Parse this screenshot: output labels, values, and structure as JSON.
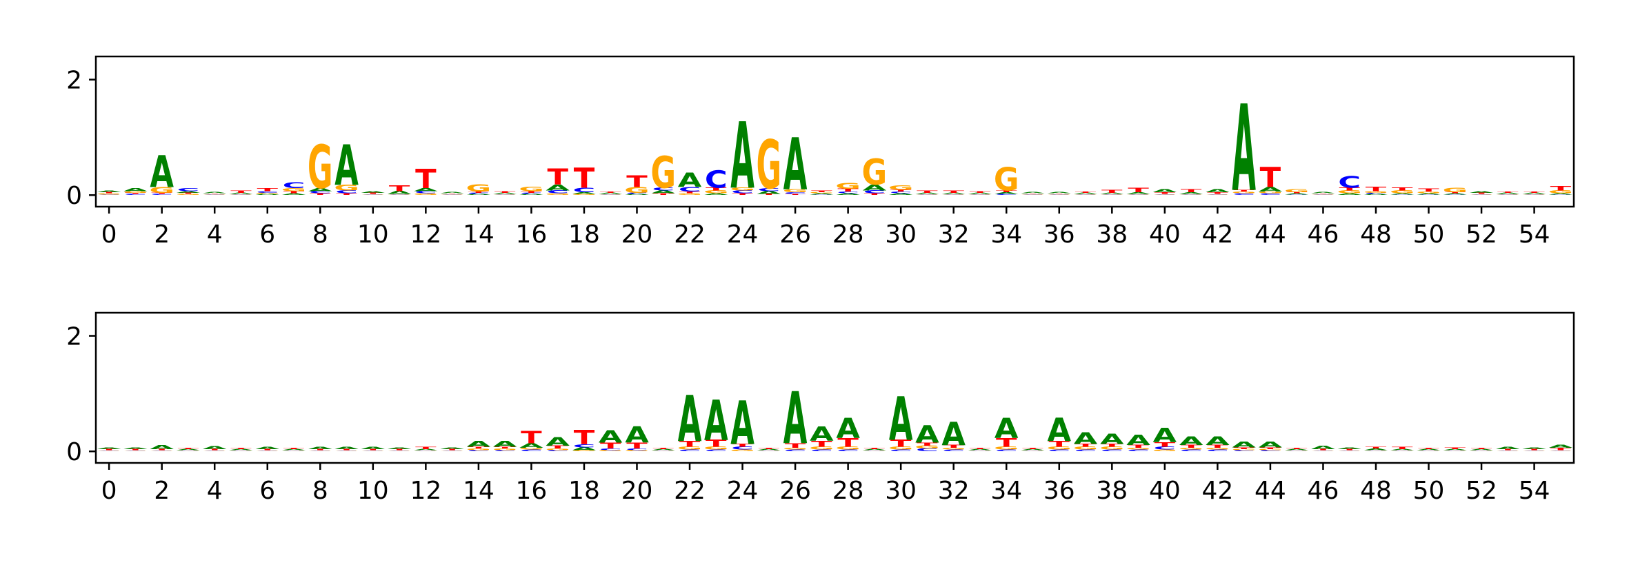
{
  "chart_data": [
    {
      "type": "sequence-logo",
      "xlim": [
        -0.5,
        55.5
      ],
      "ylim": [
        -0.2,
        2.4
      ],
      "yticks": [
        0,
        2
      ],
      "xticks": [
        0,
        2,
        4,
        6,
        8,
        10,
        12,
        14,
        16,
        18,
        20,
        22,
        24,
        26,
        28,
        30,
        32,
        34,
        36,
        38,
        40,
        42,
        44,
        46,
        48,
        50,
        52,
        54
      ],
      "positions": [
        {
          "x": 0,
          "letters": {
            "A": 0.03,
            "C": 0.01,
            "G": 0.02,
            "T": 0.02
          }
        },
        {
          "x": 1,
          "letters": {
            "A": 0.05,
            "C": 0.02,
            "G": 0.03,
            "T": 0.02
          }
        },
        {
          "x": 2,
          "letters": {
            "A": 0.55,
            "C": 0.02,
            "G": 0.1,
            "T": 0.02
          }
        },
        {
          "x": 3,
          "letters": {
            "A": 0.03,
            "C": 0.05,
            "G": 0.02,
            "T": 0.02
          }
        },
        {
          "x": 4,
          "letters": {
            "A": 0.02,
            "C": 0.01,
            "G": 0.01,
            "T": 0.01
          }
        },
        {
          "x": 5,
          "letters": {
            "A": 0.02,
            "C": 0.01,
            "G": 0.01,
            "T": 0.04
          }
        },
        {
          "x": 6,
          "letters": {
            "A": 0.02,
            "C": 0.03,
            "G": 0.02,
            "T": 0.05
          }
        },
        {
          "x": 7,
          "letters": {
            "A": 0.03,
            "C": 0.1,
            "G": 0.05,
            "T": 0.04
          }
        },
        {
          "x": 8,
          "letters": {
            "A": 0.05,
            "C": 0.04,
            "G": 0.75,
            "T": 0.03
          }
        },
        {
          "x": 9,
          "letters": {
            "A": 0.7,
            "C": 0.05,
            "G": 0.1,
            "T": 0.03
          }
        },
        {
          "x": 10,
          "letters": {
            "A": 0.03,
            "C": 0.01,
            "G": 0.01,
            "T": 0.02
          }
        },
        {
          "x": 11,
          "letters": {
            "A": 0.05,
            "C": 0.01,
            "G": 0.01,
            "T": 0.1
          }
        },
        {
          "x": 12,
          "letters": {
            "A": 0.05,
            "C": 0.04,
            "G": 0.03,
            "T": 0.33
          }
        },
        {
          "x": 13,
          "letters": {
            "A": 0.02,
            "C": 0.01,
            "G": 0.01,
            "T": 0.01
          }
        },
        {
          "x": 14,
          "letters": {
            "A": 0.02,
            "C": 0.02,
            "G": 0.12,
            "T": 0.02
          }
        },
        {
          "x": 15,
          "letters": {
            "A": 0.02,
            "C": 0.01,
            "G": 0.01,
            "T": 0.03
          }
        },
        {
          "x": 16,
          "letters": {
            "A": 0.02,
            "C": 0.02,
            "G": 0.08,
            "T": 0.03
          }
        },
        {
          "x": 17,
          "letters": {
            "A": 0.1,
            "C": 0.05,
            "G": 0.03,
            "T": 0.28
          }
        },
        {
          "x": 18,
          "letters": {
            "A": 0.03,
            "C": 0.08,
            "G": 0.02,
            "T": 0.35
          }
        },
        {
          "x": 19,
          "letters": {
            "A": 0.02,
            "C": 0.01,
            "G": 0.01,
            "T": 0.02
          }
        },
        {
          "x": 20,
          "letters": {
            "A": 0.02,
            "C": 0.02,
            "G": 0.1,
            "T": 0.2
          }
        },
        {
          "x": 21,
          "letters": {
            "A": 0.05,
            "C": 0.05,
            "G": 0.55,
            "T": 0.03
          }
        },
        {
          "x": 22,
          "letters": {
            "A": 0.25,
            "C": 0.08,
            "G": 0.03,
            "T": 0.03
          }
        },
        {
          "x": 23,
          "letters": {
            "A": 0.03,
            "C": 0.3,
            "G": 0.05,
            "T": 0.05
          }
        },
        {
          "x": 24,
          "letters": {
            "A": 1.15,
            "C": 0.05,
            "G": 0.05,
            "T": 0.03
          }
        },
        {
          "x": 25,
          "letters": {
            "A": 0.05,
            "C": 0.05,
            "G": 0.85,
            "T": 0.02
          }
        },
        {
          "x": 26,
          "letters": {
            "A": 0.9,
            "C": 0.03,
            "G": 0.05,
            "T": 0.02
          }
        },
        {
          "x": 27,
          "letters": {
            "A": 0.02,
            "C": 0.01,
            "G": 0.02,
            "T": 0.03
          }
        },
        {
          "x": 28,
          "letters": {
            "A": 0.03,
            "C": 0.03,
            "G": 0.1,
            "T": 0.05
          }
        },
        {
          "x": 29,
          "letters": {
            "A": 0.1,
            "C": 0.05,
            "G": 0.45,
            "T": 0.03
          }
        },
        {
          "x": 30,
          "letters": {
            "A": 0.03,
            "C": 0.03,
            "G": 0.08,
            "T": 0.03
          }
        },
        {
          "x": 31,
          "letters": {
            "A": 0.02,
            "C": 0.01,
            "G": 0.01,
            "T": 0.04
          }
        },
        {
          "x": 32,
          "letters": {
            "A": 0.02,
            "C": 0.01,
            "G": 0.01,
            "T": 0.04
          }
        },
        {
          "x": 33,
          "letters": {
            "A": 0.02,
            "C": 0.01,
            "G": 0.01,
            "T": 0.03
          }
        },
        {
          "x": 34,
          "letters": {
            "A": 0.03,
            "C": 0.02,
            "G": 0.4,
            "T": 0.03
          }
        },
        {
          "x": 35,
          "letters": {
            "A": 0.02,
            "C": 0.01,
            "G": 0.01,
            "T": 0.01
          }
        },
        {
          "x": 36,
          "letters": {
            "A": 0.02,
            "C": 0.01,
            "G": 0.01,
            "T": 0.01
          }
        },
        {
          "x": 37,
          "letters": {
            "A": 0.02,
            "C": 0.01,
            "G": 0.01,
            "T": 0.02
          }
        },
        {
          "x": 38,
          "letters": {
            "A": 0.02,
            "C": 0.01,
            "G": 0.01,
            "T": 0.05
          }
        },
        {
          "x": 39,
          "letters": {
            "A": 0.03,
            "C": 0.01,
            "G": 0.01,
            "T": 0.08
          }
        },
        {
          "x": 40,
          "letters": {
            "A": 0.05,
            "C": 0.01,
            "G": 0.01,
            "T": 0.03
          }
        },
        {
          "x": 41,
          "letters": {
            "A": 0.03,
            "C": 0.01,
            "G": 0.01,
            "T": 0.05
          }
        },
        {
          "x": 42,
          "letters": {
            "A": 0.05,
            "C": 0.01,
            "G": 0.01,
            "T": 0.03
          }
        },
        {
          "x": 43,
          "letters": {
            "A": 1.5,
            "C": 0.03,
            "G": 0.03,
            "T": 0.03
          }
        },
        {
          "x": 44,
          "letters": {
            "A": 0.08,
            "C": 0.03,
            "G": 0.03,
            "T": 0.35
          }
        },
        {
          "x": 45,
          "letters": {
            "A": 0.02,
            "C": 0.01,
            "G": 0.05,
            "T": 0.02
          }
        },
        {
          "x": 46,
          "letters": {
            "A": 0.02,
            "C": 0.01,
            "G": 0.01,
            "T": 0.01
          }
        },
        {
          "x": 47,
          "letters": {
            "A": 0.03,
            "C": 0.2,
            "G": 0.05,
            "T": 0.05
          }
        },
        {
          "x": 48,
          "letters": {
            "A": 0.02,
            "C": 0.02,
            "G": 0.03,
            "T": 0.08
          }
        },
        {
          "x": 49,
          "letters": {
            "A": 0.02,
            "C": 0.01,
            "G": 0.05,
            "T": 0.05
          }
        },
        {
          "x": 50,
          "letters": {
            "A": 0.02,
            "C": 0.01,
            "G": 0.03,
            "T": 0.05
          }
        },
        {
          "x": 51,
          "letters": {
            "A": 0.02,
            "C": 0.01,
            "G": 0.08,
            "T": 0.02
          }
        },
        {
          "x": 52,
          "letters": {
            "A": 0.03,
            "C": 0.01,
            "G": 0.01,
            "T": 0.02
          }
        },
        {
          "x": 53,
          "letters": {
            "A": 0.02,
            "C": 0.01,
            "G": 0.01,
            "T": 0.02
          }
        },
        {
          "x": 54,
          "letters": {
            "A": 0.02,
            "C": 0.01,
            "G": 0.01,
            "T": 0.02
          }
        },
        {
          "x": 55,
          "letters": {
            "A": 0.02,
            "C": 0.01,
            "G": 0.05,
            "T": 0.08
          }
        }
      ]
    },
    {
      "type": "sequence-logo",
      "xlim": [
        -0.5,
        55.5
      ],
      "ylim": [
        -0.2,
        2.4
      ],
      "yticks": [
        0,
        2
      ],
      "xticks": [
        0,
        2,
        4,
        6,
        8,
        10,
        12,
        14,
        16,
        18,
        20,
        22,
        24,
        26,
        28,
        30,
        32,
        34,
        36,
        38,
        40,
        42,
        44,
        46,
        48,
        50,
        52,
        54
      ],
      "positions": [
        {
          "x": 0,
          "letters": {
            "A": 0.03,
            "C": 0.01,
            "G": 0.01,
            "T": 0.02
          }
        },
        {
          "x": 1,
          "letters": {
            "A": 0.03,
            "C": 0.01,
            "G": 0.01,
            "T": 0.02
          }
        },
        {
          "x": 2,
          "letters": {
            "A": 0.07,
            "C": 0.01,
            "G": 0.01,
            "T": 0.02
          }
        },
        {
          "x": 3,
          "letters": {
            "A": 0.02,
            "C": 0.01,
            "G": 0.01,
            "T": 0.02
          }
        },
        {
          "x": 4,
          "letters": {
            "A": 0.05,
            "C": 0.01,
            "G": 0.01,
            "T": 0.02
          }
        },
        {
          "x": 5,
          "letters": {
            "A": 0.02,
            "C": 0.01,
            "G": 0.01,
            "T": 0.02
          }
        },
        {
          "x": 6,
          "letters": {
            "A": 0.04,
            "C": 0.01,
            "G": 0.01,
            "T": 0.02
          }
        },
        {
          "x": 7,
          "letters": {
            "A": 0.02,
            "C": 0.01,
            "G": 0.01,
            "T": 0.02
          }
        },
        {
          "x": 8,
          "letters": {
            "A": 0.04,
            "C": 0.01,
            "G": 0.01,
            "T": 0.02
          }
        },
        {
          "x": 9,
          "letters": {
            "A": 0.04,
            "C": 0.01,
            "G": 0.01,
            "T": 0.02
          }
        },
        {
          "x": 10,
          "letters": {
            "A": 0.04,
            "C": 0.01,
            "G": 0.01,
            "T": 0.02
          }
        },
        {
          "x": 11,
          "letters": {
            "A": 0.03,
            "C": 0.01,
            "G": 0.01,
            "T": 0.02
          }
        },
        {
          "x": 12,
          "letters": {
            "A": 0.02,
            "C": 0.01,
            "G": 0.01,
            "T": 0.04
          }
        },
        {
          "x": 13,
          "letters": {
            "A": 0.03,
            "C": 0.01,
            "G": 0.01,
            "T": 0.02
          }
        },
        {
          "x": 14,
          "letters": {
            "A": 0.1,
            "C": 0.02,
            "G": 0.03,
            "T": 0.03
          }
        },
        {
          "x": 15,
          "letters": {
            "A": 0.1,
            "C": 0.02,
            "G": 0.03,
            "T": 0.03
          }
        },
        {
          "x": 16,
          "letters": {
            "A": 0.08,
            "C": 0.03,
            "G": 0.03,
            "T": 0.22
          }
        },
        {
          "x": 17,
          "letters": {
            "A": 0.15,
            "C": 0.02,
            "G": 0.03,
            "T": 0.05
          }
        },
        {
          "x": 18,
          "letters": {
            "A": 0.05,
            "C": 0.05,
            "G": 0.02,
            "T": 0.25
          }
        },
        {
          "x": 19,
          "letters": {
            "A": 0.22,
            "C": 0.03,
            "G": 0.02,
            "T": 0.1
          }
        },
        {
          "x": 20,
          "letters": {
            "A": 0.28,
            "C": 0.03,
            "G": 0.02,
            "T": 0.1
          }
        },
        {
          "x": 21,
          "letters": {
            "A": 0.02,
            "C": 0.01,
            "G": 0.01,
            "T": 0.02
          }
        },
        {
          "x": 22,
          "letters": {
            "A": 0.8,
            "C": 0.03,
            "G": 0.05,
            "T": 0.1
          }
        },
        {
          "x": 23,
          "letters": {
            "A": 0.7,
            "C": 0.03,
            "G": 0.05,
            "T": 0.12
          }
        },
        {
          "x": 24,
          "letters": {
            "A": 0.75,
            "C": 0.05,
            "G": 0.03,
            "T": 0.05
          }
        },
        {
          "x": 25,
          "letters": {
            "A": 0.02,
            "C": 0.01,
            "G": 0.01,
            "T": 0.02
          }
        },
        {
          "x": 26,
          "letters": {
            "A": 0.9,
            "C": 0.03,
            "G": 0.03,
            "T": 0.08
          }
        },
        {
          "x": 27,
          "letters": {
            "A": 0.25,
            "C": 0.03,
            "G": 0.05,
            "T": 0.1
          }
        },
        {
          "x": 28,
          "letters": {
            "A": 0.35,
            "C": 0.03,
            "G": 0.05,
            "T": 0.15
          }
        },
        {
          "x": 29,
          "letters": {
            "A": 0.02,
            "C": 0.01,
            "G": 0.01,
            "T": 0.02
          }
        },
        {
          "x": 30,
          "letters": {
            "A": 0.75,
            "C": 0.03,
            "G": 0.05,
            "T": 0.12
          }
        },
        {
          "x": 31,
          "letters": {
            "A": 0.3,
            "C": 0.05,
            "G": 0.05,
            "T": 0.05
          }
        },
        {
          "x": 32,
          "letters": {
            "A": 0.4,
            "C": 0.03,
            "G": 0.03,
            "T": 0.05
          }
        },
        {
          "x": 33,
          "letters": {
            "A": 0.02,
            "C": 0.01,
            "G": 0.01,
            "T": 0.02
          }
        },
        {
          "x": 34,
          "letters": {
            "A": 0.35,
            "C": 0.03,
            "G": 0.05,
            "T": 0.15
          }
        },
        {
          "x": 35,
          "letters": {
            "A": 0.02,
            "C": 0.01,
            "G": 0.01,
            "T": 0.02
          }
        },
        {
          "x": 36,
          "letters": {
            "A": 0.4,
            "C": 0.03,
            "G": 0.05,
            "T": 0.1
          }
        },
        {
          "x": 37,
          "letters": {
            "A": 0.2,
            "C": 0.03,
            "G": 0.05,
            "T": 0.05
          }
        },
        {
          "x": 38,
          "letters": {
            "A": 0.18,
            "C": 0.03,
            "G": 0.05,
            "T": 0.05
          }
        },
        {
          "x": 39,
          "letters": {
            "A": 0.18,
            "C": 0.03,
            "G": 0.03,
            "T": 0.05
          }
        },
        {
          "x": 40,
          "letters": {
            "A": 0.25,
            "C": 0.05,
            "G": 0.03,
            "T": 0.08
          }
        },
        {
          "x": 41,
          "letters": {
            "A": 0.15,
            "C": 0.03,
            "G": 0.03,
            "T": 0.05
          }
        },
        {
          "x": 42,
          "letters": {
            "A": 0.15,
            "C": 0.03,
            "G": 0.03,
            "T": 0.05
          }
        },
        {
          "x": 43,
          "letters": {
            "A": 0.1,
            "C": 0.02,
            "G": 0.02,
            "T": 0.03
          }
        },
        {
          "x": 44,
          "letters": {
            "A": 0.1,
            "C": 0.02,
            "G": 0.02,
            "T": 0.03
          }
        },
        {
          "x": 45,
          "letters": {
            "A": 0.02,
            "C": 0.01,
            "G": 0.01,
            "T": 0.02
          }
        },
        {
          "x": 46,
          "letters": {
            "A": 0.06,
            "C": 0.01,
            "G": 0.01,
            "T": 0.02
          }
        },
        {
          "x": 47,
          "letters": {
            "A": 0.03,
            "C": 0.01,
            "G": 0.01,
            "T": 0.02
          }
        },
        {
          "x": 48,
          "letters": {
            "A": 0.03,
            "C": 0.01,
            "G": 0.01,
            "T": 0.03
          }
        },
        {
          "x": 49,
          "letters": {
            "A": 0.02,
            "C": 0.01,
            "G": 0.01,
            "T": 0.04
          }
        },
        {
          "x": 50,
          "letters": {
            "A": 0.02,
            "C": 0.01,
            "G": 0.01,
            "T": 0.02
          }
        },
        {
          "x": 51,
          "letters": {
            "A": 0.02,
            "C": 0.01,
            "G": 0.01,
            "T": 0.03
          }
        },
        {
          "x": 52,
          "letters": {
            "A": 0.02,
            "C": 0.01,
            "G": 0.01,
            "T": 0.02
          }
        },
        {
          "x": 53,
          "letters": {
            "A": 0.04,
            "C": 0.01,
            "G": 0.01,
            "T": 0.02
          }
        },
        {
          "x": 54,
          "letters": {
            "A": 0.03,
            "C": 0.01,
            "G": 0.01,
            "T": 0.02
          }
        },
        {
          "x": 55,
          "letters": {
            "A": 0.05,
            "C": 0.01,
            "G": 0.01,
            "T": 0.04
          }
        }
      ]
    }
  ],
  "colors": {
    "A": "#008000",
    "C": "#0000FF",
    "G": "#FFA500",
    "T": "#FF0000",
    "axis": "#000000",
    "background": "#FFFFFF"
  }
}
